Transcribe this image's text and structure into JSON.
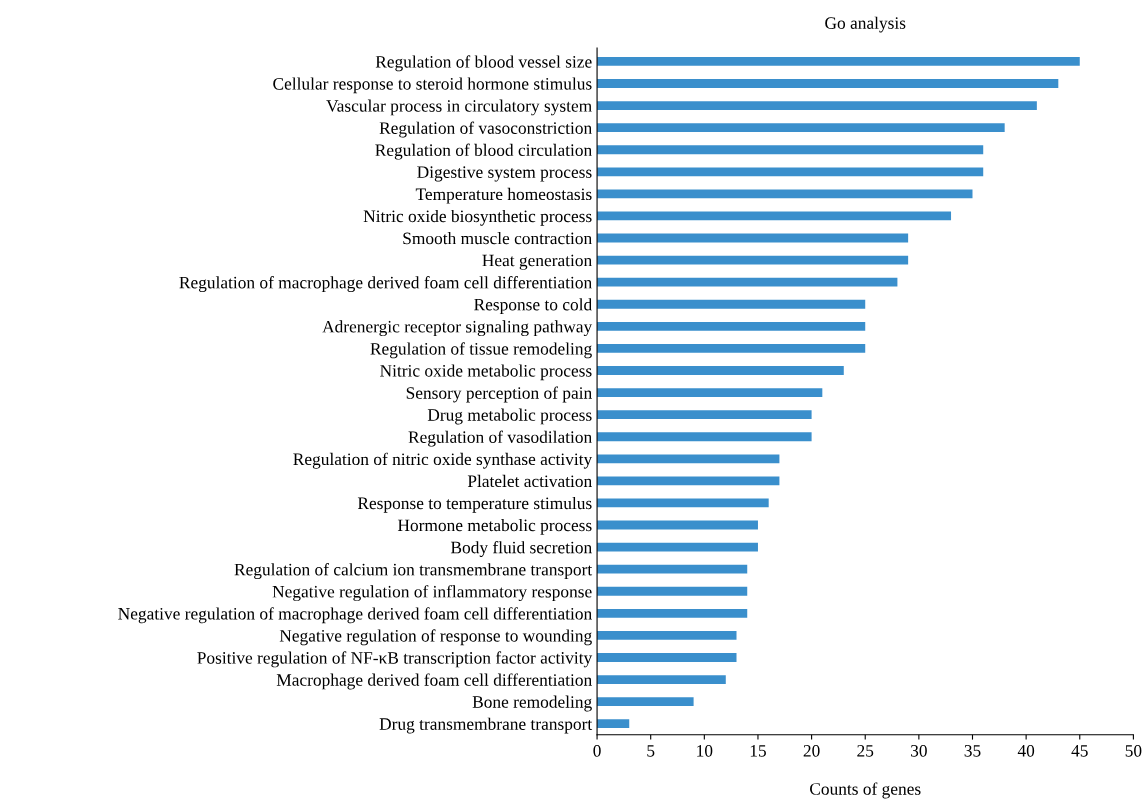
{
  "chart_data": {
    "type": "bar",
    "orientation": "horizontal",
    "title": "Go analysis",
    "xlabel": "Counts of genes",
    "categories": [
      "Regulation of blood vessel size",
      "Cellular response to steroid hormone stimulus",
      "Vascular process in circulatory system",
      "Regulation of vasoconstriction",
      "Regulation of blood circulation",
      "Digestive system process",
      "Temperature homeostasis",
      "Nitric oxide biosynthetic process",
      "Smooth muscle contraction",
      "Heat generation",
      "Regulation of macrophage derived foam cell differentiation",
      "Response to cold",
      "Adrenergic receptor signaling pathway",
      "Regulation of tissue remodeling",
      "Nitric oxide metabolic process",
      "Sensory perception of pain",
      "Drug metabolic process",
      "Regulation of vasodilation",
      "Regulation of nitric oxide synthase activity",
      "Platelet activation",
      "Response to temperature stimulus",
      "Hormone metabolic process",
      "Body fluid secretion",
      "Regulation of calcium ion transmembrane transport",
      "Negative regulation of inflammatory response",
      "Negative regulation of macrophage derived foam cell differentiation",
      "Negative regulation of response to wounding",
      "Positive regulation of NF-κB transcription factor activity",
      "Macrophage derived foam cell differentiation",
      "Bone remodeling",
      "Drug transmembrane transport"
    ],
    "values": [
      45,
      43,
      41,
      38,
      36,
      36,
      35,
      33,
      29,
      29,
      28,
      25,
      25,
      25,
      23,
      21,
      20,
      20,
      17,
      17,
      16,
      15,
      15,
      14,
      14,
      14,
      13,
      13,
      12,
      9,
      3
    ],
    "color": "#3a8fcc",
    "xlim": [
      0,
      50
    ],
    "xticks": [
      0,
      5,
      10,
      15,
      20,
      25,
      30,
      35,
      40,
      45,
      50
    ],
    "grid": false
  }
}
